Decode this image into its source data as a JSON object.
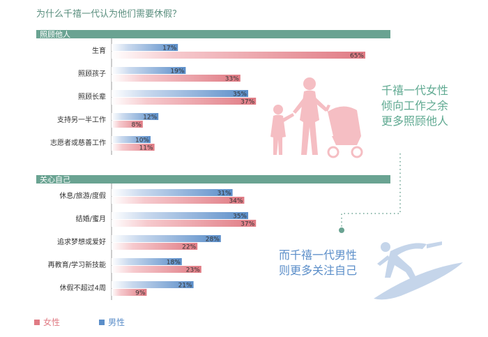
{
  "chart_data": {
    "type": "bar",
    "title": "为什么千禧一代认为他们需要休假？",
    "legend": [
      {
        "name": "女性",
        "color": "#e07b84"
      },
      {
        "name": "男性",
        "color": "#5b8ec9"
      }
    ],
    "value_suffix": "%",
    "xlim": [
      0,
      70
    ],
    "sections": [
      {
        "title": "照顾他人",
        "categories": [
          "生育",
          "照顾孩子",
          "照顾长辈",
          "支持另一半工作",
          "志愿者或慈善工作"
        ],
        "series": [
          {
            "name": "男性",
            "values": [
              17,
              19,
              35,
              12,
              10
            ]
          },
          {
            "name": "女性",
            "values": [
              65,
              33,
              37,
              8,
              11
            ]
          }
        ]
      },
      {
        "title": "关心自己",
        "categories": [
          "休息/旅游/度假",
          "结婚/蜜月",
          "追求梦想或爱好",
          "再教育/学习新技能",
          "休假不超过4周"
        ],
        "series": [
          {
            "name": "男性",
            "values": [
              31,
              35,
              28,
              18,
              21
            ]
          },
          {
            "name": "女性",
            "values": [
              34,
              37,
              22,
              23,
              9
            ]
          }
        ]
      }
    ]
  },
  "callouts": {
    "women": [
      "千禧一代女性",
      "倾向工作之余",
      "更多照顾他人"
    ],
    "men": [
      "而千禧一代男性",
      "则更多关注自己"
    ]
  },
  "colors": {
    "accent": "#6aa392",
    "female": "#e07b84",
    "male": "#5b8ec9",
    "illustration_female": "#f4b7bd",
    "illustration_male": "#c5d5ea"
  }
}
